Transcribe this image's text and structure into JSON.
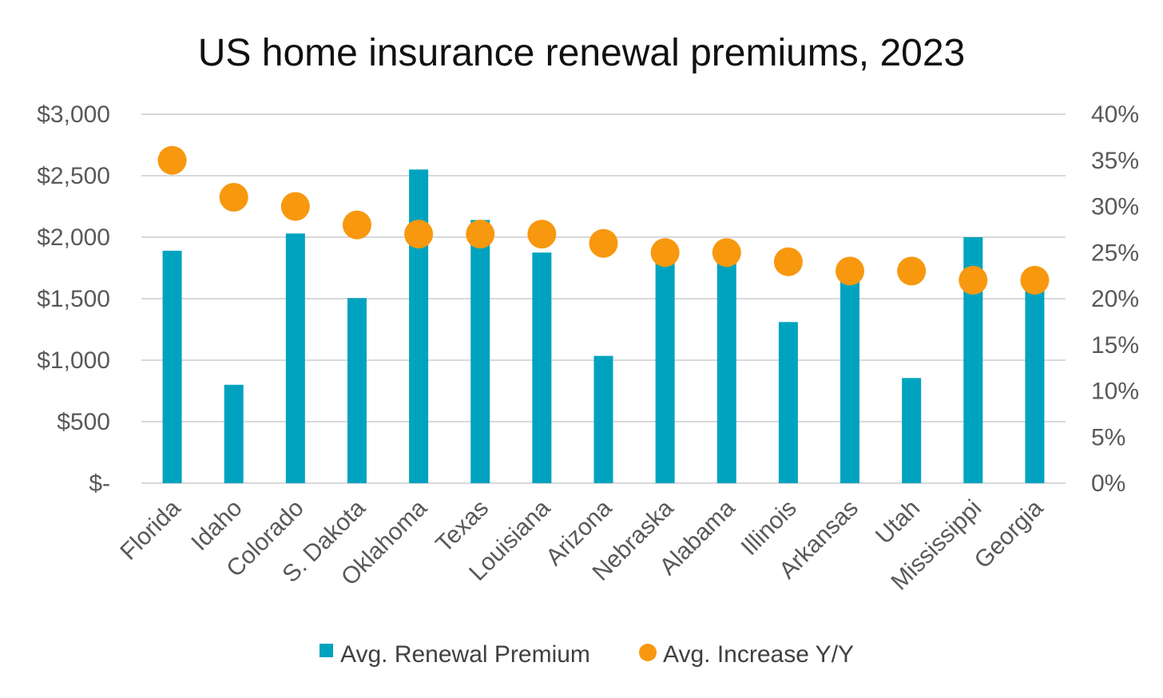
{
  "chart_data": {
    "type": "bar",
    "title": "US home insurance renewal premiums, 2023",
    "categories": [
      "Florida",
      "Idaho",
      "Colorado",
      "S. Dakota",
      "Oklahoma",
      "Texas",
      "Louisiana",
      "Arizona",
      "Nebraska",
      "Alabama",
      "Illinois",
      "Arkansas",
      "Utah",
      "Mississippi",
      "Georgia"
    ],
    "series": [
      {
        "name": "Avg. Renewal Premium",
        "type": "bar",
        "axis": "left",
        "color": "#00a3bf",
        "values": [
          1890,
          800,
          2030,
          1505,
          2550,
          2140,
          1875,
          1035,
          1850,
          1840,
          1310,
          1720,
          855,
          2000,
          1630
        ]
      },
      {
        "name": "Avg. Increase Y/Y",
        "type": "scatter",
        "axis": "right",
        "color": "#f7980f",
        "values": [
          35,
          31,
          30,
          28,
          27,
          27,
          27,
          26,
          25,
          25,
          24,
          23,
          23,
          22,
          22
        ]
      }
    ],
    "y_left": {
      "ylim": [
        0,
        3000
      ],
      "ticks": [
        0,
        500,
        1000,
        1500,
        2000,
        2500,
        3000
      ],
      "tick_labels": [
        "$-",
        "$500",
        "$1,000",
        "$1,500",
        "$2,000",
        "$2,500",
        "$3,000"
      ]
    },
    "y_right": {
      "ylim": [
        0,
        40
      ],
      "ticks": [
        0,
        5,
        10,
        15,
        20,
        25,
        30,
        35,
        40
      ],
      "tick_labels": [
        "0%",
        "5%",
        "10%",
        "15%",
        "20%",
        "25%",
        "30%",
        "35%",
        "40%"
      ]
    },
    "grid": true,
    "legend": "bottom"
  }
}
